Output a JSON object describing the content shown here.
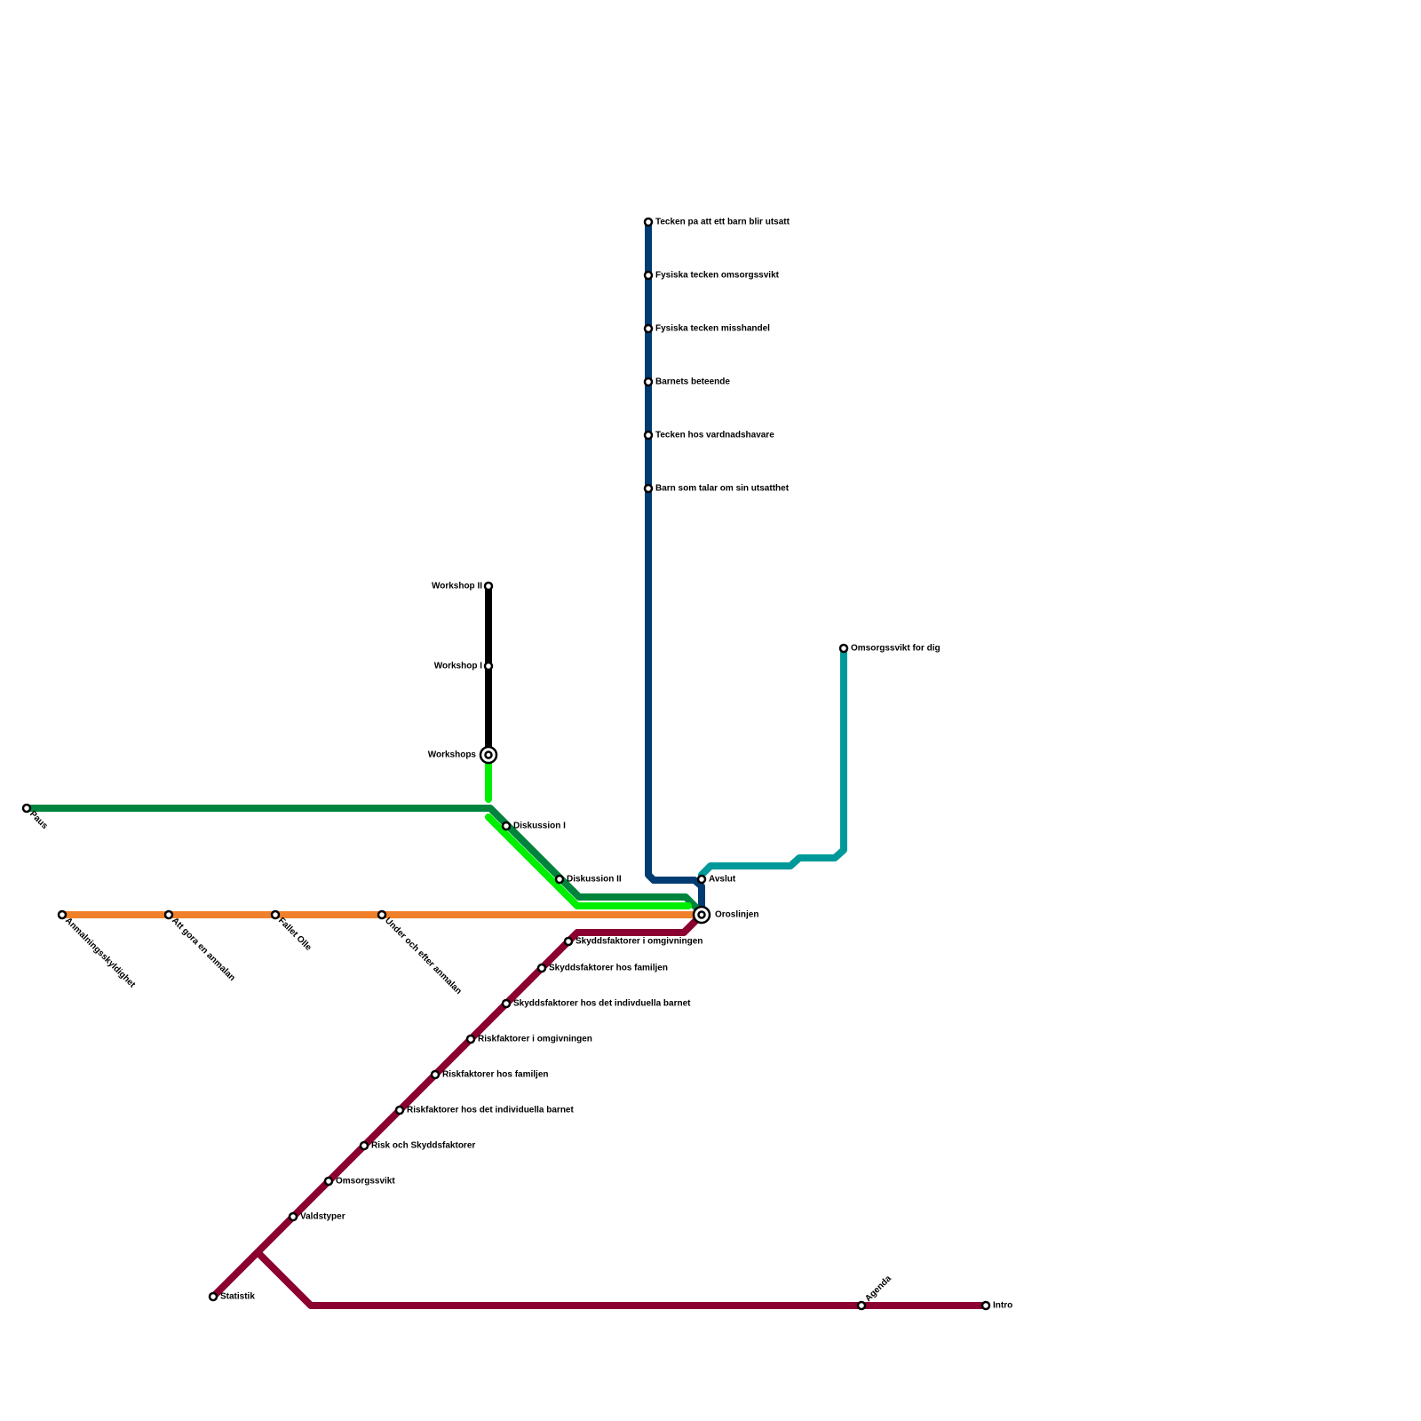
{
  "stations": [
    {
      "label": "Tecken pa att ett barn blir utsatt"
    },
    {
      "label": "Fysiska tecken omsorgssvikt"
    },
    {
      "label": "Fysiska tecken misshandel"
    },
    {
      "label": "Barnets beteende"
    },
    {
      "label": "Tecken hos vardnadshavare"
    },
    {
      "label": "Barn som talar om sin utsatthet"
    },
    {
      "label": "Workshop II"
    },
    {
      "label": "Workshop I"
    },
    {
      "label": "Workshops"
    },
    {
      "label": "Omsorgssvikt for dig"
    },
    {
      "label": "Paus"
    },
    {
      "label": "Diskussion I"
    },
    {
      "label": "Diskussion II"
    },
    {
      "label": "Avslut"
    },
    {
      "label": "Oroslinjen"
    },
    {
      "label": "Anmalningsskyldighet"
    },
    {
      "label": "Att gora en anmalan"
    },
    {
      "label": "Fallet Olle"
    },
    {
      "label": "Under och efter anmalan"
    },
    {
      "label": "Skyddsfaktorer i omgivningen"
    },
    {
      "label": "Skyddsfaktorer hos familjen"
    },
    {
      "label": "Skyddsfaktorer hos det indivduella barnet"
    },
    {
      "label": "Riskfaktorer i omgivningen"
    },
    {
      "label": "Riskfaktorer hos familjen"
    },
    {
      "label": "Riskfaktorer hos det individuella barnet"
    },
    {
      "label": "Risk och Skyddsfaktorer"
    },
    {
      "label": "Omsorgssvikt"
    },
    {
      "label": "Valdstyper"
    },
    {
      "label": "Statistik"
    },
    {
      "label": "Agenda"
    },
    {
      "label": "Intro"
    }
  ]
}
